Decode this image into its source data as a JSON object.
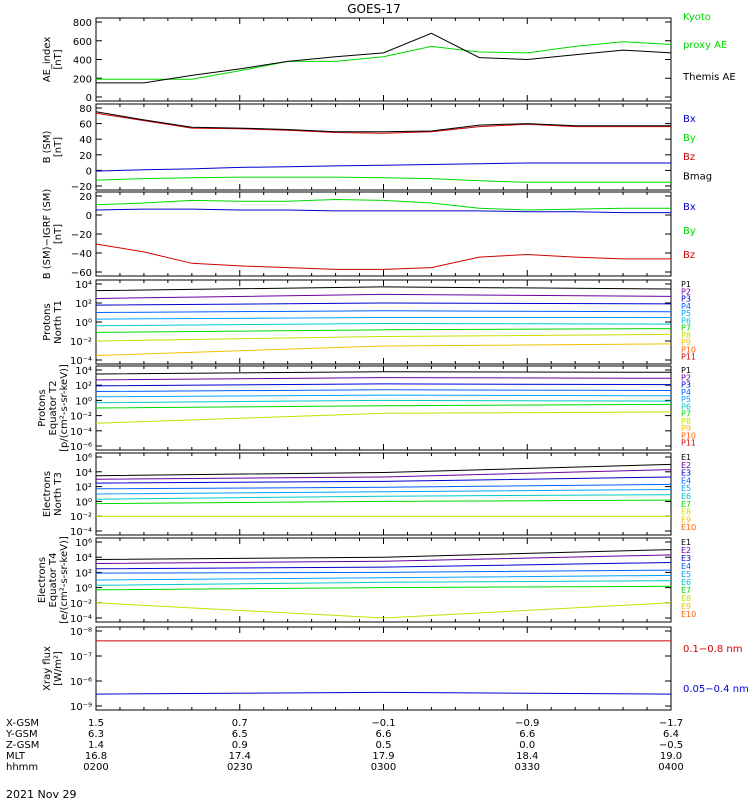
{
  "title": "GOES-17",
  "date": "2021 Nov 29",
  "colors": {
    "black": "#000000",
    "green": "#00d800",
    "blue": "#0000d0",
    "red": "#d00000",
    "p_ramp": [
      "#000000",
      "#6a00a0",
      "#0000d0",
      "#0060ff",
      "#00a0ff",
      "#00c8c8",
      "#00d800",
      "#c8e000",
      "#f0c000",
      "#ff6000",
      "#d00000"
    ]
  },
  "panels": [
    {
      "key": "ae",
      "ylabel": [
        "AE_index",
        "[nT]"
      ],
      "ticks": [
        "800",
        "600",
        "400",
        "200",
        "0"
      ],
      "legend": [
        {
          "text": "Kyoto",
          "color": "green"
        },
        {
          "text": "proxy AE",
          "color": "green"
        },
        {
          "text": "Themis AE",
          "color": "black"
        }
      ]
    },
    {
      "key": "b",
      "ylabel": [
        "B (SM)",
        "[nT]"
      ],
      "ticks": [
        "80",
        "60",
        "40",
        "20",
        "0",
        "−20"
      ],
      "legend": [
        {
          "text": "Bx",
          "color": "blue"
        },
        {
          "text": "By",
          "color": "green"
        },
        {
          "text": "Bz",
          "color": "red"
        },
        {
          "text": "Bmag",
          "color": "black"
        }
      ]
    },
    {
      "key": "bigrf",
      "ylabel": [
        "B (SM)−IGRF (SM)",
        "[nT]"
      ],
      "ticks": [
        "20",
        "0",
        "−20",
        "−40",
        "−60"
      ],
      "legend": [
        {
          "text": "Bx",
          "color": "blue"
        },
        {
          "text": "By",
          "color": "green"
        },
        {
          "text": "Bz",
          "color": "red"
        }
      ]
    },
    {
      "key": "pn",
      "ylabel": [
        "Protons",
        "North T1"
      ],
      "ticks": [
        "10⁴",
        "10²",
        "10⁰",
        "10⁻²",
        "10⁻⁴"
      ],
      "legend": [
        "P1",
        "P2",
        "P3",
        "P4",
        "P5",
        "P6",
        "P7",
        "P8",
        "P9",
        "P10",
        "P11"
      ]
    },
    {
      "key": "pe",
      "ylabel": [
        "Protons",
        "Equator T2",
        "[p/(cm²-s-sr-keV)]"
      ],
      "ticks": [
        "10⁴",
        "10²",
        "10⁰",
        "10⁻²",
        "10⁻⁴",
        "10⁻⁶"
      ],
      "legend": [
        "P1",
        "P2",
        "P3",
        "P4",
        "P5",
        "P6",
        "P7",
        "P8",
        "P9",
        "P10",
        "P11"
      ]
    },
    {
      "key": "en",
      "ylabel": [
        "Electrons",
        "North T3"
      ],
      "ticks": [
        "10⁶",
        "10⁴",
        "10²",
        "10⁰",
        "10⁻²",
        "10⁻⁴"
      ],
      "legend": [
        "E1",
        "E2",
        "E3",
        "E4",
        "E5",
        "E6",
        "E7",
        "E8",
        "E9",
        "E10"
      ]
    },
    {
      "key": "ee",
      "ylabel": [
        "Electrons",
        "Equator T4",
        "[e/(cm²-s-sr-keV)]"
      ],
      "ticks": [
        "10⁶",
        "10⁴",
        "10²",
        "10⁰",
        "10⁻²",
        "10⁻⁴"
      ],
      "legend": [
        "E1",
        "E2",
        "E3",
        "E4",
        "E5",
        "E6",
        "E7",
        "E8",
        "E9",
        "E10"
      ]
    },
    {
      "key": "xr",
      "ylabel": [
        "Xray flux",
        "[W/m²]"
      ],
      "ticks": [
        "10⁻⁸",
        "10⁻⁷",
        "10⁻⁶",
        "10⁻⁹"
      ],
      "legend": [
        {
          "text": "0.1−0.8 nm",
          "color": "red"
        },
        {
          "text": "0.05−0.4 nm",
          "color": "blue"
        }
      ]
    }
  ],
  "xaxis": {
    "rows": [
      {
        "label": "X-GSM",
        "values": [
          "1.5",
          "0.7",
          "−0.1",
          "−0.9",
          "−1.7"
        ]
      },
      {
        "label": "Y-GSM",
        "values": [
          "6.3",
          "6.5",
          "6.6",
          "6.6",
          "6.4"
        ]
      },
      {
        "label": "Z-GSM",
        "values": [
          "1.4",
          "0.9",
          "0.5",
          "0.0",
          "−0.5"
        ]
      },
      {
        "label": "MLT",
        "values": [
          "16.8",
          "17.4",
          "17.9",
          "18.4",
          "19.0"
        ]
      },
      {
        "label": "hhmm",
        "values": [
          "0200",
          "0230",
          "0300",
          "0330",
          "0400"
        ]
      }
    ]
  },
  "chart_data": [
    {
      "type": "line",
      "title": "GOES-17",
      "ylabel": "AE_index [nT]",
      "ylim": [
        0,
        800
      ],
      "x": [
        "0200",
        "0210",
        "0220",
        "0230",
        "0240",
        "0250",
        "0300",
        "0310",
        "0320",
        "0330",
        "0340",
        "0350",
        "0400"
      ],
      "series": [
        {
          "name": "Kyoto proxy AE",
          "color": "green",
          "values": [
            190,
            190,
            190,
            280,
            380,
            380,
            430,
            540,
            480,
            470,
            540,
            590,
            560
          ]
        },
        {
          "name": "Themis AE",
          "color": "black",
          "values": [
            150,
            150,
            230,
            300,
            380,
            430,
            470,
            680,
            420,
            400,
            450,
            500,
            470
          ]
        }
      ]
    },
    {
      "type": "line",
      "ylabel": "B (SM) [nT]",
      "ylim": [
        -25,
        80
      ],
      "x": [
        "0200",
        "0210",
        "0220",
        "0230",
        "0240",
        "0250",
        "0300",
        "0310",
        "0320",
        "0330",
        "0340",
        "0350",
        "0400"
      ],
      "series": [
        {
          "name": "Bx",
          "color": "blue",
          "values": [
            -5,
            -3,
            -2,
            0,
            1,
            2,
            3,
            4,
            5,
            6,
            6,
            6,
            6
          ]
        },
        {
          "name": "By",
          "color": "green",
          "values": [
            -17,
            -15,
            -14,
            -13,
            -13,
            -13,
            -14,
            -15,
            -18,
            -20,
            -20,
            -20,
            -20
          ]
        },
        {
          "name": "Bz",
          "color": "red",
          "values": [
            73,
            63,
            53,
            52,
            50,
            47,
            46,
            48,
            55,
            58,
            55,
            55,
            55
          ]
        },
        {
          "name": "Bmag",
          "color": "black",
          "values": [
            75,
            64,
            54,
            53,
            51,
            48,
            48,
            49,
            57,
            59,
            56,
            56,
            56
          ]
        }
      ]
    },
    {
      "type": "line",
      "ylabel": "B (SM)−IGRF (SM) [nT]",
      "ylim": [
        -65,
        22
      ],
      "x": [
        "0200",
        "0210",
        "0220",
        "0230",
        "0240",
        "0250",
        "0300",
        "0310",
        "0320",
        "0330",
        "0340",
        "0350",
        "0400"
      ],
      "series": [
        {
          "name": "Bx",
          "color": "blue",
          "values": [
            6,
            7,
            7,
            6,
            6,
            5,
            5,
            5,
            5,
            4,
            4,
            3,
            3
          ]
        },
        {
          "name": "By",
          "color": "green",
          "values": [
            12,
            14,
            17,
            16,
            16,
            18,
            17,
            14,
            8,
            6,
            7,
            8,
            8
          ]
        },
        {
          "name": "Bz",
          "color": "red",
          "values": [
            -33,
            -42,
            -55,
            -58,
            -60,
            -62,
            -62,
            -60,
            -48,
            -45,
            -48,
            -50,
            -50
          ]
        }
      ]
    },
    {
      "type": "line",
      "ylabel": "Protons North T1",
      "ylim": [
        "1e-4",
        "1e4"
      ],
      "scale": "log",
      "x": [
        "0200",
        "0300",
        "0400"
      ],
      "series": [
        {
          "name": "P1",
          "values": [
            2000,
            5000,
            3000
          ]
        },
        {
          "name": "P2",
          "values": [
            300,
            800,
            500
          ]
        },
        {
          "name": "P3",
          "values": [
            60,
            100,
            80
          ]
        },
        {
          "name": "P4",
          "values": [
            10,
            15,
            12
          ]
        },
        {
          "name": "P5",
          "values": [
            2,
            3,
            3
          ]
        },
        {
          "name": "P6",
          "values": [
            0.4,
            0.7,
            0.6
          ]
        },
        {
          "name": "P7",
          "values": [
            0.08,
            0.15,
            0.2
          ]
        },
        {
          "name": "P8",
          "values": [
            0.01,
            0.03,
            0.05
          ]
        },
        {
          "name": "P9",
          "values": [
            0.0003,
            0.003,
            0.005
          ]
        }
      ]
    },
    {
      "type": "line",
      "ylabel": "Protons Equator T2 [p/(cm²-s-sr-keV)]",
      "ylim": [
        "1e-6",
        "1e4"
      ],
      "scale": "log",
      "x": [
        "0200",
        "0300",
        "0400"
      ],
      "series": [
        {
          "name": "P1",
          "values": [
            3000,
            6000,
            5000
          ]
        },
        {
          "name": "P2",
          "values": [
            500,
            1000,
            800
          ]
        },
        {
          "name": "P3",
          "values": [
            80,
            150,
            120
          ]
        },
        {
          "name": "P4",
          "values": [
            15,
            25,
            20
          ]
        },
        {
          "name": "P5",
          "values": [
            3,
            5,
            4
          ]
        },
        {
          "name": "P6",
          "values": [
            0.5,
            1,
            0.8
          ]
        },
        {
          "name": "P7",
          "values": [
            0.1,
            0.2,
            0.3
          ]
        },
        {
          "name": "P8",
          "values": [
            0.001,
            0.02,
            0.03
          ]
        }
      ]
    },
    {
      "type": "line",
      "ylabel": "Electrons North T3",
      "ylim": [
        "1e-4",
        "1e6"
      ],
      "scale": "log",
      "x": [
        "0200",
        "0300",
        "0400"
      ],
      "series": [
        {
          "name": "E1",
          "values": [
            3000,
            8000,
            100000
          ]
        },
        {
          "name": "E2",
          "values": [
            1000,
            2000,
            20000
          ]
        },
        {
          "name": "E3",
          "values": [
            300,
            500,
            2000
          ]
        },
        {
          "name": "E4",
          "values": [
            50,
            80,
            200
          ]
        },
        {
          "name": "E5",
          "values": [
            10,
            20,
            40
          ]
        },
        {
          "name": "E6",
          "values": [
            2,
            5,
            8
          ]
        },
        {
          "name": "E7",
          "values": [
            0.5,
            1,
            1.5
          ]
        },
        {
          "name": "E8",
          "values": [
            0.01,
            0.01,
            0.01
          ]
        }
      ]
    },
    {
      "type": "line",
      "ylabel": "Electrons Equator T4 [e/(cm²-s-sr-keV)]",
      "ylim": [
        "1e-4",
        "1e6"
      ],
      "scale": "log",
      "x": [
        "0200",
        "0300",
        "0400"
      ],
      "series": [
        {
          "name": "E1",
          "values": [
            5000,
            10000,
            100000
          ]
        },
        {
          "name": "E2",
          "values": [
            1500,
            3000,
            20000
          ]
        },
        {
          "name": "E3",
          "values": [
            300,
            500,
            2000
          ]
        },
        {
          "name": "E4",
          "values": [
            80,
            100,
            200
          ]
        },
        {
          "name": "E5",
          "values": [
            10,
            20,
            40
          ]
        },
        {
          "name": "E6",
          "values": [
            2,
            5,
            8
          ]
        },
        {
          "name": "E7",
          "values": [
            0.5,
            1,
            1.5
          ]
        },
        {
          "name": "E8",
          "values": [
            0.01,
            0.0001,
            0.01
          ]
        }
      ]
    },
    {
      "type": "line",
      "ylabel": "Xray flux [W/m²]",
      "ylim": [
        "1e-9",
        "1e-6"
      ],
      "scale": "log",
      "x": [
        "0200",
        "0300",
        "0400"
      ],
      "series": [
        {
          "name": "0.1−0.8 nm",
          "color": "red",
          "values": [
            "4e-7",
            "4e-7",
            "4e-7"
          ]
        },
        {
          "name": "0.05−0.4 nm",
          "color": "blue",
          "values": [
            "3e-9",
            "3.5e-9",
            "3e-9"
          ]
        }
      ]
    }
  ]
}
